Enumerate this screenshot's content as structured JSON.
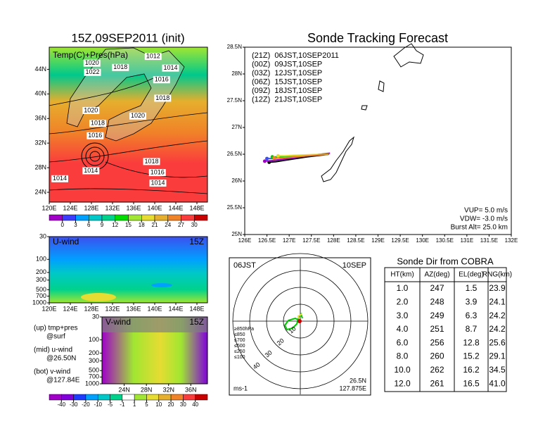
{
  "chart_data": [
    {
      "type": "map",
      "title": "15Z,09SEP2011 (init)",
      "label": "Temp(C)+Pres(hPa)",
      "xlim": [
        120,
        150
      ],
      "xticks": [
        {
          "value": 120,
          "label": "120E"
        },
        {
          "value": 124,
          "label": "124E"
        },
        {
          "value": 128,
          "label": "128E"
        },
        {
          "value": 132,
          "label": "132E"
        },
        {
          "value": 136,
          "label": "136E"
        },
        {
          "value": 140,
          "label": "140E"
        },
        {
          "value": 144,
          "label": "144E"
        },
        {
          "value": 148,
          "label": "148E"
        }
      ],
      "ylim": [
        22.4,
        47.6
      ],
      "yticks": [
        {
          "value": 24,
          "label": "24N"
        },
        {
          "value": 28,
          "label": "28N"
        },
        {
          "value": 32,
          "label": "32N"
        },
        {
          "value": 36,
          "label": "36N"
        },
        {
          "value": 40,
          "label": "40N"
        },
        {
          "value": 44,
          "label": "44N"
        }
      ],
      "isobars": [
        {
          "label": "1012",
          "lon": 139.7,
          "lat": 46.1
        },
        {
          "label": "1014",
          "lon": 143.0,
          "lat": 44.2
        },
        {
          "label": "1020",
          "lon": 128.1,
          "lat": 45.0
        },
        {
          "label": "1022",
          "lon": 128.2,
          "lat": 43.5
        },
        {
          "label": "1018",
          "lon": 133.5,
          "lat": 44.3
        },
        {
          "label": "1016",
          "lon": 141.3,
          "lat": 42.3
        },
        {
          "label": "1018",
          "lon": 141.5,
          "lat": 39.3
        },
        {
          "label": "1020",
          "lon": 127.9,
          "lat": 37.3
        },
        {
          "label": "1018",
          "lon": 129.2,
          "lat": 35.2
        },
        {
          "label": "1020",
          "lon": 136.8,
          "lat": 36.4
        },
        {
          "label": "1016",
          "lon": 128.7,
          "lat": 33.2
        },
        {
          "label": "1014",
          "lon": 127.9,
          "lat": 27.5
        },
        {
          "label": "1018",
          "lon": 139.4,
          "lat": 29.0
        },
        {
          "label": "1016",
          "lon": 140.5,
          "lat": 27.2
        },
        {
          "label": "1014",
          "lon": 140.6,
          "lat": 25.5
        },
        {
          "label": "1014",
          "lon": 122.0,
          "lat": 26.2
        }
      ],
      "colorbar": {
        "lim": [
          -3,
          33
        ],
        "ticks": [
          0,
          3,
          6,
          9,
          12,
          15,
          18,
          21,
          24,
          27,
          30
        ],
        "colors": [
          "#a000c8",
          "#3c3cff",
          "#00a0ff",
          "#00c8c8",
          "#00d28c",
          "#00dc00",
          "#a0e632",
          "#e6dc32",
          "#e6af2d",
          "#f08228",
          "#fa3c3c",
          "#c80000"
        ]
      }
    },
    {
      "type": "cross-section",
      "title": "U-wind",
      "time": "15Z",
      "log_y": true,
      "xlim": [
        120,
        150
      ],
      "xticks": [
        {
          "value": 120,
          "label": "120E"
        },
        {
          "value": 124,
          "label": "124E"
        },
        {
          "value": 128,
          "label": "128E"
        },
        {
          "value": 132,
          "label": "132E"
        },
        {
          "value": 136,
          "label": "136E"
        },
        {
          "value": 140,
          "label": "140E"
        },
        {
          "value": 144,
          "label": "144E"
        },
        {
          "value": 148,
          "label": "148E"
        }
      ],
      "ylim": [
        1000,
        30
      ],
      "yticks": [
        30,
        100,
        200,
        300,
        500,
        700,
        1000
      ]
    },
    {
      "type": "cross-section",
      "title": "V-wind",
      "time": "15Z",
      "log_y": true,
      "xlim": [
        20,
        39
      ],
      "xticks": [
        {
          "value": 24,
          "label": "24N"
        },
        {
          "value": 28,
          "label": "28N"
        },
        {
          "value": 32,
          "label": "32N"
        },
        {
          "value": 36,
          "label": "36N"
        }
      ],
      "ylim": [
        1000,
        30
      ],
      "yticks": [
        30,
        100,
        200,
        300,
        500,
        700,
        1000
      ],
      "colorbar": {
        "ticks": [
          -40,
          -30,
          -20,
          -10,
          -5,
          -1,
          1,
          5,
          10,
          20,
          30,
          40
        ],
        "colors": [
          "#a000c8",
          "#8200dc",
          "#1e3cff",
          "#00a0ff",
          "#00c8c8",
          "#00d28c",
          "#ffffff",
          "#a0e632",
          "#e6dc32",
          "#e6af2d",
          "#f08228",
          "#fa3c3c",
          "#c80000"
        ]
      }
    },
    {
      "type": "track",
      "title": "Sonde Tracking Forecast",
      "xlim": [
        126,
        132
      ],
      "xticks": [
        {
          "value": 126,
          "label": "126E"
        },
        {
          "value": 126.5,
          "label": "126.5E"
        },
        {
          "value": 127,
          "label": "127E"
        },
        {
          "value": 127.5,
          "label": "127.5E"
        },
        {
          "value": 128,
          "label": "128E"
        },
        {
          "value": 128.5,
          "label": "128.5E"
        },
        {
          "value": 129,
          "label": "129E"
        },
        {
          "value": 129.5,
          "label": "129.5E"
        },
        {
          "value": 130,
          "label": "130E"
        },
        {
          "value": 130.5,
          "label": "130.5E"
        },
        {
          "value": 131,
          "label": "131E"
        },
        {
          "value": 131.5,
          "label": "131.5E"
        },
        {
          "value": 132,
          "label": "132E"
        }
      ],
      "ylim": [
        25,
        28.5
      ],
      "yticks": [
        {
          "value": 25,
          "label": "25N"
        },
        {
          "value": 25.5,
          "label": "25.5N"
        },
        {
          "value": 26,
          "label": "26N"
        },
        {
          "value": 26.5,
          "label": "26.5N"
        },
        {
          "value": 27,
          "label": "27N"
        },
        {
          "value": 27.5,
          "label": "27.5N"
        },
        {
          "value": 28,
          "label": "28N"
        },
        {
          "value": 28.5,
          "label": "28.5N"
        }
      ],
      "series": [
        {
          "name": "(21Z)  06JST,10SEP2011",
          "color": "#000000",
          "x": [
            127.9,
            127.4,
            127.0,
            126.7,
            126.55
          ],
          "y": [
            26.5,
            26.45,
            26.4,
            26.36,
            26.35
          ]
        },
        {
          "name": "(00Z)  09JST,10SEP",
          "color": "#a000c8",
          "x": [
            127.92,
            127.4,
            126.9,
            126.6,
            126.45
          ],
          "y": [
            26.52,
            26.47,
            26.41,
            26.38,
            26.37
          ]
        },
        {
          "name": "(03Z)  12JST,10SEP",
          "color": "#3c50f0",
          "x": [
            127.9,
            127.4,
            126.9,
            126.65,
            126.5
          ],
          "y": [
            26.51,
            26.48,
            26.44,
            26.42,
            26.42
          ]
        },
        {
          "name": "(06Z)  15JST,10SEP",
          "color": "#00c800",
          "x": [
            127.9,
            127.4,
            127.0,
            126.75,
            126.62
          ],
          "y": [
            26.5,
            26.48,
            26.46,
            26.45,
            26.45
          ]
        },
        {
          "name": "(09Z)  18JST,10SEP",
          "color": "#e6dc32",
          "x": [
            127.88,
            127.45,
            127.1,
            126.9,
            126.75
          ],
          "y": [
            26.5,
            26.49,
            26.48,
            26.47,
            26.47
          ]
        },
        {
          "name": "(12Z)  21JST,10SEP",
          "color": "#f08228",
          "x": [
            127.88,
            127.4,
            127.0,
            126.8,
            126.66
          ],
          "y": [
            26.5,
            26.47,
            26.44,
            26.43,
            26.43
          ]
        }
      ],
      "notes": [
        "VUP= 5.0 m/s",
        "VDW= -3.0 m/s",
        "Burst Alt= 25.0 km"
      ]
    },
    {
      "type": "polar",
      "time": "06JST",
      "date": "10SEP",
      "lat": "26.5N",
      "lon": "127.875E",
      "unit": "ms-1",
      "rlim": [
        0,
        40
      ],
      "rticks": [
        10,
        20,
        30,
        40
      ],
      "pressure_legend": [
        {
          "label": "≥850hPa",
          "color": "#c80000"
        },
        {
          "label": "≤850",
          "color": "#f08228"
        },
        {
          "label": "≤700",
          "color": "#e6dc32"
        },
        {
          "label": "≤500",
          "color": "#00c800"
        },
        {
          "label": "≤250",
          "color": "#00c8c8"
        },
        {
          "label": "≤100",
          "color": "#3c50f0"
        }
      ]
    }
  ],
  "legend_notes": [
    "(up) tmp+pres",
    "@surf",
    "(mid) u-wind",
    "@26.50N",
    "(bot) v-wind",
    "@127.84E"
  ],
  "table": {
    "title": "Sonde Dir from COBRA",
    "header": [
      "HT(km)",
      "AZ(deg)",
      "EL(deg)",
      "RNG(km)"
    ],
    "rows": [
      [
        "1.0",
        "247",
        "1.5",
        "23.9"
      ],
      [
        "2.0",
        "248",
        "3.9",
        "24.1"
      ],
      [
        "3.0",
        "249",
        "6.3",
        "24.2"
      ],
      [
        "4.0",
        "251",
        "8.7",
        "24.2"
      ],
      [
        "6.0",
        "256",
        "12.8",
        "25.6"
      ],
      [
        "8.0",
        "260",
        "15.2",
        "29.1"
      ],
      [
        "10.0",
        "262",
        "16.2",
        "34.5"
      ],
      [
        "12.0",
        "261",
        "16.5",
        "41.0"
      ]
    ]
  }
}
